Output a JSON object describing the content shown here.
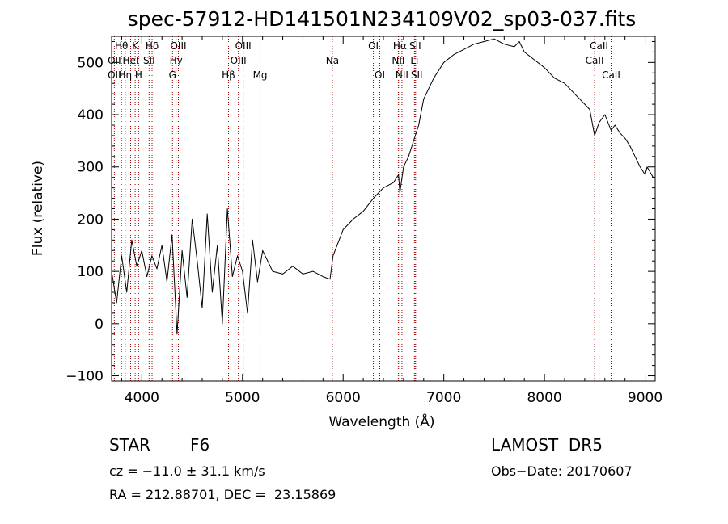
{
  "chart_data": {
    "type": "line",
    "title": "spec-57912-HD141501N234109V02_sp03-037.fits",
    "xlabel": "Wavelength (Å)",
    "ylabel": "Flux (relative)",
    "xlim": [
      3700,
      9100
    ],
    "ylim": [
      -110,
      550
    ],
    "x_ticks": [
      4000,
      5000,
      6000,
      7000,
      8000,
      9000
    ],
    "y_ticks": [
      -100,
      0,
      100,
      200,
      300,
      400,
      500
    ],
    "grid": false,
    "line_color": "#000000",
    "marker_color": "#a00000",
    "series": [
      {
        "x": [
          3700,
          3750,
          3800,
          3850,
          3900,
          3950,
          4000,
          4050,
          4100,
          4150,
          4200,
          4250,
          4300,
          4350,
          4400,
          4450,
          4500,
          4550,
          4600,
          4650,
          4700,
          4750,
          4800,
          4850,
          4900,
          4950,
          5000,
          5050,
          5100,
          5150,
          5200,
          5300,
          5400,
          5500,
          5600,
          5700,
          5800,
          5870,
          5900,
          5950,
          6000,
          6100,
          6200,
          6300,
          6400,
          6500,
          6550,
          6563,
          6600,
          6650,
          6700,
          6750,
          6800,
          6900,
          7000,
          7100,
          7200,
          7300,
          7400,
          7500,
          7600,
          7700,
          7750,
          7800,
          7900,
          8000,
          8100,
          8200,
          8300,
          8400,
          8450,
          8498,
          8542,
          8600,
          8662,
          8700,
          8750,
          8800,
          8850,
          8900,
          8950,
          9000,
          9020,
          9050,
          9080
        ],
        "y": [
          100,
          40,
          130,
          60,
          160,
          110,
          140,
          90,
          130,
          105,
          150,
          80,
          170,
          -20,
          140,
          50,
          200,
          120,
          30,
          210,
          60,
          150,
          0,
          220,
          90,
          130,
          100,
          20,
          160,
          80,
          140,
          100,
          95,
          110,
          95,
          100,
          90,
          85,
          130,
          155,
          180,
          200,
          215,
          240,
          260,
          270,
          285,
          250,
          300,
          320,
          350,
          380,
          430,
          470,
          500,
          515,
          525,
          535,
          540,
          545,
          535,
          530,
          540,
          520,
          505,
          490,
          470,
          460,
          440,
          420,
          410,
          360,
          385,
          400,
          370,
          380,
          365,
          355,
          340,
          320,
          300,
          285,
          300,
          290,
          280
        ]
      }
    ],
    "lines": [
      {
        "name": "Hθ",
        "x": 3798,
        "row": 0
      },
      {
        "name": "K",
        "x": 3934,
        "row": 0
      },
      {
        "name": "Hδ",
        "x": 4102,
        "row": 0
      },
      {
        "name": "OIII",
        "x": 4363,
        "row": 0
      },
      {
        "name": "OIII",
        "x": 5007,
        "row": 0
      },
      {
        "name": "OI",
        "x": 6300,
        "row": 0
      },
      {
        "name": "Hα",
        "x": 6563,
        "row": 0
      },
      {
        "name": "SII",
        "x": 6716,
        "row": 0
      },
      {
        "name": "CaII",
        "x": 8542,
        "row": 0
      },
      {
        "name": "OII",
        "x": 3727,
        "row": 1
      },
      {
        "name": "HeI",
        "x": 3889,
        "row": 1
      },
      {
        "name": "SII",
        "x": 4072,
        "row": 1
      },
      {
        "name": "Hγ",
        "x": 4340,
        "row": 1
      },
      {
        "name": "OIII",
        "x": 4959,
        "row": 1
      },
      {
        "name": "Na",
        "x": 5893,
        "row": 1
      },
      {
        "name": "NII",
        "x": 6548,
        "row": 1
      },
      {
        "name": "Li",
        "x": 6708,
        "row": 1
      },
      {
        "name": "CaII",
        "x": 8498,
        "row": 1
      },
      {
        "name": "OII",
        "x": 3727,
        "row": 2
      },
      {
        "name": "Hη",
        "x": 3835,
        "row": 2
      },
      {
        "name": "H",
        "x": 3968,
        "row": 2
      },
      {
        "name": "G",
        "x": 4305,
        "row": 2
      },
      {
        "name": "Hβ",
        "x": 4861,
        "row": 2
      },
      {
        "name": "Mg",
        "x": 5175,
        "row": 2
      },
      {
        "name": "OI",
        "x": 6364,
        "row": 2
      },
      {
        "name": "NII",
        "x": 6584,
        "row": 2
      },
      {
        "name": "SII",
        "x": 6731,
        "row": 2
      },
      {
        "name": "CaII",
        "x": 8662,
        "row": 2
      }
    ]
  },
  "info": {
    "class_label": "STAR",
    "subclass": "F6",
    "survey": "LAMOST  DR5",
    "cz": "cz = −11.0 ± 31.1 km/s",
    "obs_date": "Obs−Date: 20170607",
    "coords": "RA = 212.88701, DEC =  23.15869"
  }
}
